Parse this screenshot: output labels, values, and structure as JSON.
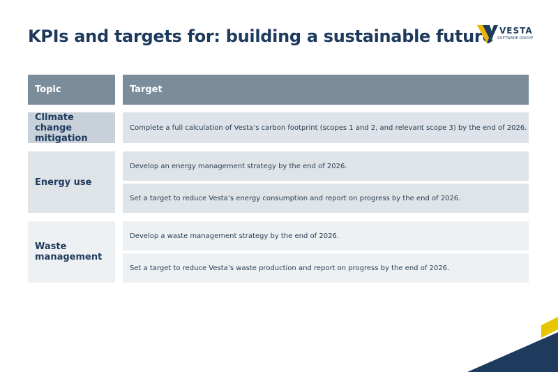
{
  "header": {
    "title": "KPIs and targets for: building a sustainable future"
  },
  "logo": {
    "name": "VESTA",
    "subtitle": "SOFTWARE GROUP"
  },
  "table": {
    "headers": [
      "Topic",
      "Target"
    ],
    "rows": [
      {
        "topic": "Climate change mitigation",
        "targets": [
          "Complete a full calculation of Vesta’s carbon footprint (scopes 1 and 2, and relevant scope 3) by the end of 2026."
        ]
      },
      {
        "topic": "Energy use",
        "targets": [
          "Develop an energy management strategy by the end of 2026.",
          "Set a target to reduce Vesta’s energy consumption and report on progress by the end of 2026."
        ]
      },
      {
        "topic": "Waste management",
        "targets": [
          "Develop a waste management strategy by the end of 2026.",
          "Set a target to reduce Vesta’s waste production and report on progress by the end of 2026."
        ]
      }
    ]
  }
}
